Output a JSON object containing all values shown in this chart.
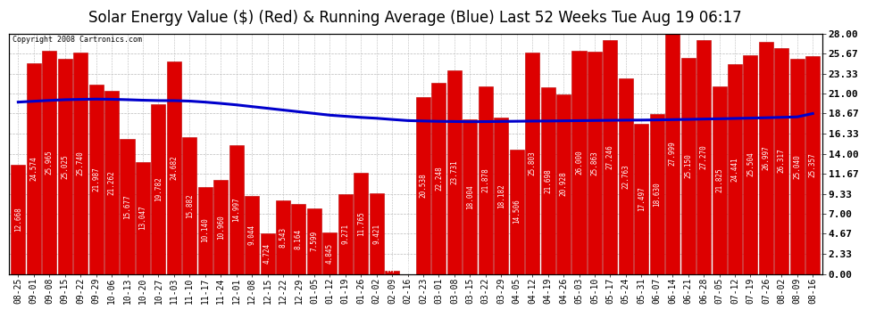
{
  "title": "Solar Energy Value ($) (Red) & Running Average (Blue) Last 52 Weeks Tue Aug 19 06:17",
  "copyright": "Copyright 2008 Cartronics.com",
  "bar_color": "#dd0000",
  "bar_edge_color": "#bb0000",
  "line_color": "#0000cc",
  "bg_color": "#ffffff",
  "plot_bg_color": "#ffffff",
  "grid_color": "#bbbbbb",
  "ylabel_right_values": [
    0.0,
    2.33,
    4.67,
    7.0,
    9.33,
    11.67,
    14.0,
    16.33,
    18.67,
    21.0,
    23.33,
    25.67,
    28.0
  ],
  "categories": [
    "08-25",
    "09-01",
    "09-08",
    "09-15",
    "09-22",
    "09-29",
    "10-06",
    "10-13",
    "10-20",
    "10-27",
    "11-03",
    "11-10",
    "11-17",
    "11-24",
    "12-01",
    "12-08",
    "12-15",
    "12-22",
    "12-29",
    "01-05",
    "01-12",
    "01-19",
    "01-26",
    "02-02",
    "02-09",
    "02-16",
    "02-23",
    "03-01",
    "03-08",
    "03-15",
    "03-22",
    "03-29",
    "04-05",
    "04-12",
    "04-19",
    "04-26",
    "05-03",
    "05-10",
    "05-17",
    "05-24",
    "05-31",
    "06-07",
    "06-14",
    "06-21",
    "06-28",
    "07-05",
    "07-12",
    "07-19",
    "07-26",
    "08-02",
    "08-09",
    "08-16"
  ],
  "values": [
    12.668,
    24.574,
    25.965,
    25.025,
    25.74,
    21.987,
    21.262,
    15.677,
    13.047,
    19.782,
    24.682,
    15.882,
    10.14,
    10.96,
    14.997,
    9.044,
    4.724,
    8.543,
    8.164,
    7.599,
    4.845,
    9.271,
    11.765,
    9.421,
    0.317,
    0.0,
    20.538,
    22.248,
    23.731,
    18.004,
    21.878,
    18.182,
    14.506,
    25.803,
    21.698,
    20.928,
    26.0,
    25.863,
    27.246,
    22.763,
    17.497,
    18.63,
    27.999,
    25.15,
    27.27,
    21.825,
    24.441,
    25.504,
    26.997,
    26.317,
    25.04,
    25.357
  ],
  "running_avg": [
    20.0,
    20.1,
    20.2,
    20.28,
    20.32,
    20.35,
    20.33,
    20.28,
    20.22,
    20.18,
    20.17,
    20.12,
    20.0,
    19.85,
    19.68,
    19.48,
    19.28,
    19.08,
    18.88,
    18.68,
    18.48,
    18.35,
    18.22,
    18.12,
    17.98,
    17.85,
    17.8,
    17.76,
    17.74,
    17.72,
    17.73,
    17.75,
    17.77,
    17.79,
    17.8,
    17.82,
    17.84,
    17.86,
    17.88,
    17.9,
    17.91,
    17.93,
    17.96,
    17.99,
    18.03,
    18.06,
    18.1,
    18.14,
    18.18,
    18.23,
    18.28,
    18.67
  ],
  "ylim": [
    0,
    28.0
  ],
  "title_fontsize": 12,
  "tick_fontsize": 7,
  "value_fontsize": 5.5
}
